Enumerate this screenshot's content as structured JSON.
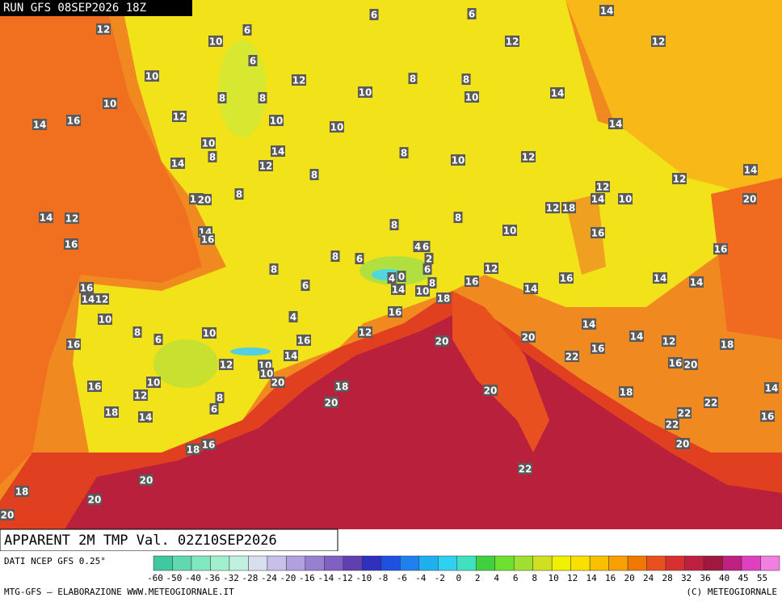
{
  "header": {
    "run": "RUN GFS 08SEP2026 18Z",
    "product": "APPARENT 2M TMP Val. 02Z10SEP2026",
    "source": "DATI NCEP GFS 0.25°",
    "credit": "MTG-GFS — ELABORAZIONE WWW.METEOGIORNALE.IT",
    "copyright": "(C) METEOGIORNALE"
  },
  "legend": {
    "labels": [
      "-60",
      "-50",
      "-40",
      "-36",
      "-32",
      "-28",
      "-24",
      "-20",
      "-16",
      "-14",
      "-12",
      "-10",
      "-8",
      "-6",
      "-4",
      "-2",
      "0",
      "2",
      "4",
      "6",
      "8",
      "10",
      "12",
      "14",
      "16",
      "20",
      "24",
      "28",
      "32",
      "36",
      "40",
      "45",
      "55"
    ],
    "colors": [
      "#40c8a0",
      "#60d8b0",
      "#80e8c0",
      "#a0f0d0",
      "#c0f0e0",
      "#d8e0f0",
      "#c8c0e8",
      "#b0a0e0",
      "#9880d0",
      "#8060c0",
      "#6040b0",
      "#3030c0",
      "#2050e0",
      "#2080f0",
      "#20b0f0",
      "#30d0f0",
      "#40e0c0",
      "#40d040",
      "#70e030",
      "#a0e030",
      "#d0e020",
      "#f0f000",
      "#f8e000",
      "#f8c000",
      "#f8a000",
      "#f07800",
      "#e85020",
      "#d83030",
      "#c02040",
      "#a01840",
      "#c02080",
      "#e040c0",
      "#f080e0"
    ]
  },
  "map": {
    "labels": [
      12,
      10,
      6,
      6,
      10,
      12,
      10,
      8,
      8,
      10,
      14,
      12,
      12,
      14,
      6,
      6,
      10,
      14,
      16,
      12,
      8,
      8,
      10,
      10,
      10,
      8,
      14,
      12,
      14,
      8,
      10,
      12,
      14,
      8,
      8,
      12,
      20,
      14,
      12,
      14,
      16,
      16,
      8,
      8,
      10,
      12,
      18,
      12,
      14,
      10,
      12,
      14,
      20,
      16,
      16,
      8,
      8,
      6,
      6,
      4,
      6,
      2,
      4,
      0,
      6,
      8,
      14,
      10,
      12,
      16,
      14,
      16,
      14,
      14,
      16,
      14,
      12,
      10,
      8,
      6,
      10,
      16,
      4,
      16,
      18,
      16,
      12,
      20,
      20,
      14,
      14,
      12,
      18,
      22,
      16,
      14,
      12,
      10,
      10,
      20,
      16,
      20,
      10,
      12,
      16,
      8,
      6,
      18,
      20,
      20,
      18,
      22,
      22,
      22,
      14,
      16,
      18,
      14,
      18,
      16,
      20,
      22,
      20,
      18,
      20,
      20
    ]
  }
}
